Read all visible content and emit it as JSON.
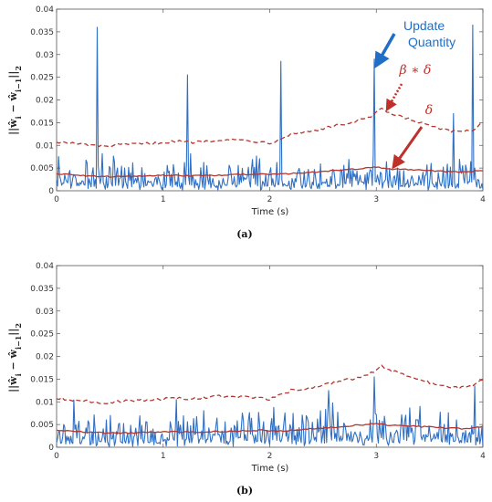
{
  "colors": {
    "update": "#2f6fc4",
    "delta": "#b3362f",
    "beta_delta": "#b3362f",
    "annotation_blue": "#1f6fc6",
    "annotation_red": "#c0302b"
  },
  "chart_data": [
    {
      "type": "line",
      "panel_label": "(a)",
      "xlabel": "Time (s)",
      "ylabel": "||ŵ_i − ŵ_{i−1}||_2",
      "ylabel_parts": [
        "||",
        "ŵ",
        "i",
        " − ",
        "ŵ",
        "i−1",
        "||",
        "2"
      ],
      "xlim": [
        0,
        4
      ],
      "ylim": [
        0,
        0.04
      ],
      "xticks": [
        "0",
        "1",
        "2",
        "3",
        "4"
      ],
      "yticks": [
        "0",
        "0.005",
        "0.01",
        "0.015",
        "0.02",
        "0.025",
        "0.03",
        "0.035",
        "0.04"
      ],
      "grid": false,
      "annotations": [
        {
          "text_lines": [
            "Update",
            "Quantity"
          ],
          "target_series": "update",
          "target": [
            2.98,
            0.029
          ]
        },
        {
          "text": "β ∗ δ",
          "target_series": "beta_delta",
          "target": [
            3.1,
            0.0175
          ]
        },
        {
          "text": "δ",
          "target_series": "delta",
          "target": [
            3.15,
            0.0065
          ]
        }
      ],
      "series": [
        {
          "key": "update",
          "baseline": 0.0025,
          "spikes": [
            [
              0.38,
              0.036
            ],
            [
              1.23,
              0.0255
            ],
            [
              2.1,
              0.0285
            ],
            [
              2.98,
              0.029
            ],
            [
              3.9,
              0.0365
            ],
            [
              3.72,
              0.017
            ]
          ]
        },
        {
          "key": "delta",
          "x": [
            0,
            0.3,
            0.5,
            0.8,
            1.0,
            1.3,
            1.6,
            1.9,
            2.1,
            2.4,
            2.7,
            2.9,
            3.0,
            3.1,
            3.3,
            3.6,
            3.8,
            4.0
          ],
          "y": [
            0.0038,
            0.0033,
            0.0031,
            0.0032,
            0.0034,
            0.0033,
            0.0035,
            0.0037,
            0.0036,
            0.0041,
            0.0046,
            0.005,
            0.0053,
            0.0048,
            0.0047,
            0.0043,
            0.0041,
            0.0045
          ]
        },
        {
          "key": "beta_delta",
          "x": [
            0,
            0.2,
            0.45,
            0.65,
            0.9,
            1.1,
            1.3,
            1.55,
            1.8,
            2.0,
            2.2,
            2.4,
            2.6,
            2.8,
            2.95,
            3.05,
            3.15,
            3.3,
            3.5,
            3.7,
            3.9,
            4.0
          ],
          "y": [
            0.0108,
            0.0103,
            0.0098,
            0.0102,
            0.0104,
            0.0109,
            0.0107,
            0.0113,
            0.0111,
            0.0105,
            0.0125,
            0.0132,
            0.0142,
            0.0152,
            0.0163,
            0.018,
            0.0168,
            0.0158,
            0.0143,
            0.013,
            0.0133,
            0.015
          ]
        }
      ]
    },
    {
      "type": "line",
      "panel_label": "(b)",
      "xlabel": "Time (s)",
      "ylabel": "||ŵ_i − ŵ_{i−1}||_2",
      "ylabel_parts": [
        "||",
        "ŵ",
        "i",
        " − ",
        "ŵ",
        "i−1",
        "||",
        "2"
      ],
      "xlim": [
        0,
        4
      ],
      "ylim": [
        0,
        0.04
      ],
      "xticks": [
        "0",
        "1",
        "2",
        "3",
        "4"
      ],
      "yticks": [
        "0",
        "0.005",
        "0.01",
        "0.015",
        "0.02",
        "0.025",
        "0.03",
        "0.035",
        "0.04"
      ],
      "grid": false,
      "series": [
        {
          "key": "update",
          "baseline": 0.0025,
          "spikes": [
            [
              2.98,
              0.0155
            ],
            [
              2.55,
              0.0125
            ],
            [
              3.92,
              0.0135
            ],
            [
              1.12,
              0.0105
            ]
          ]
        },
        {
          "key": "delta",
          "x": [
            0,
            0.3,
            0.5,
            0.8,
            1.0,
            1.3,
            1.6,
            1.9,
            2.1,
            2.4,
            2.7,
            2.9,
            3.0,
            3.1,
            3.3,
            3.6,
            3.8,
            4.0
          ],
          "y": [
            0.0038,
            0.0033,
            0.0031,
            0.0032,
            0.0034,
            0.0033,
            0.0035,
            0.0037,
            0.0036,
            0.0041,
            0.0046,
            0.005,
            0.0053,
            0.0048,
            0.0047,
            0.0043,
            0.0041,
            0.0045
          ]
        },
        {
          "key": "beta_delta",
          "x": [
            0,
            0.2,
            0.45,
            0.65,
            0.9,
            1.1,
            1.3,
            1.55,
            1.8,
            2.0,
            2.2,
            2.4,
            2.6,
            2.8,
            2.95,
            3.05,
            3.15,
            3.3,
            3.5,
            3.7,
            3.9,
            4.0
          ],
          "y": [
            0.0108,
            0.0103,
            0.0098,
            0.0102,
            0.0104,
            0.0109,
            0.0107,
            0.0113,
            0.0111,
            0.0105,
            0.0125,
            0.0132,
            0.0142,
            0.0152,
            0.0163,
            0.018,
            0.0168,
            0.0158,
            0.0143,
            0.013,
            0.0133,
            0.015
          ]
        }
      ]
    }
  ]
}
